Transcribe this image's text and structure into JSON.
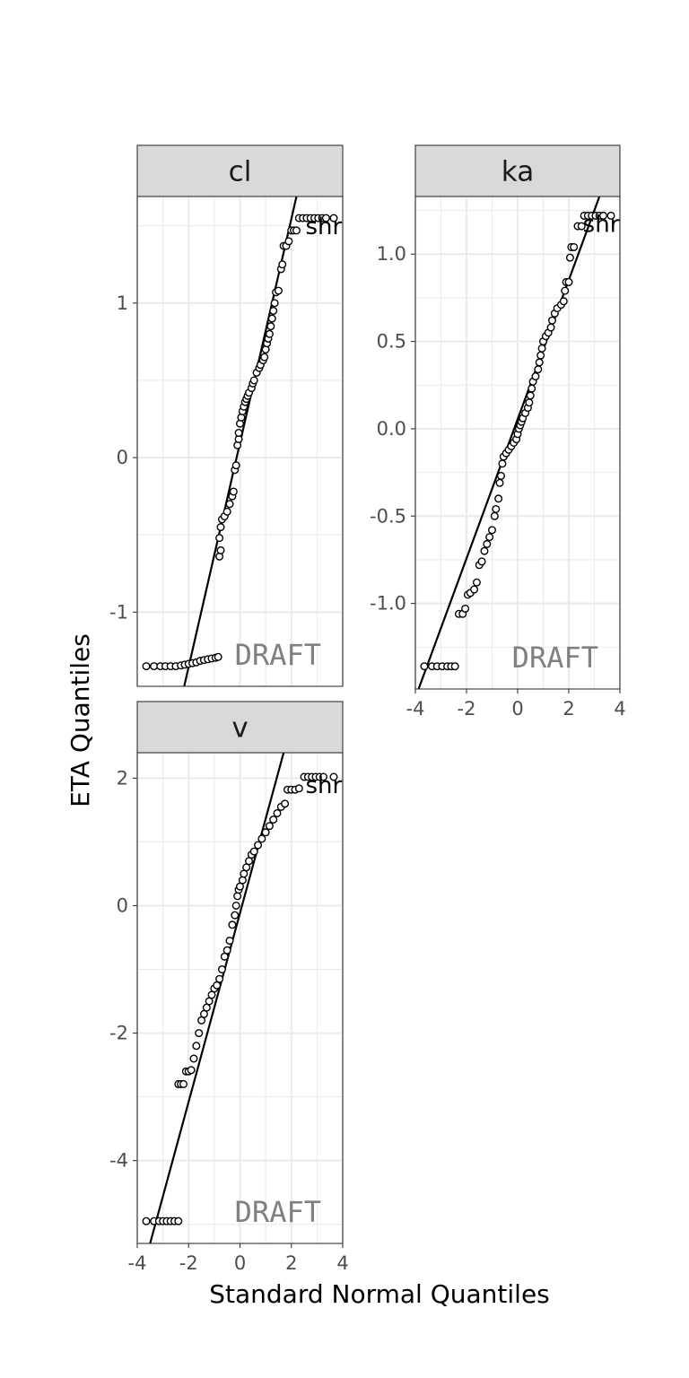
{
  "chart_data": {
    "type": "scatter",
    "xlabel": "Standard Normal Quantiles",
    "ylabel": "ETA Quantiles",
    "watermark": "DRAFT",
    "point_label": "shrink",
    "panels": [
      {
        "name": "cl",
        "xlim": [
          -4,
          4
        ],
        "ylim": [
          -1.48,
          1.69
        ],
        "yticks": [
          -1,
          0,
          1
        ],
        "yticklabels": [
          "-1",
          "0",
          "1"
        ],
        "line": {
          "points": [
            [
              -2.2,
              -1.5
            ],
            [
              2.2,
              1.69
            ]
          ]
        },
        "outliers": [
          [
            -3.65,
            -1.35
          ],
          [
            3.65,
            1.55
          ]
        ],
        "points": [
          [
            -3.35,
            -1.35
          ],
          [
            -3.1,
            -1.35
          ],
          [
            -2.9,
            -1.35
          ],
          [
            -2.7,
            -1.35
          ],
          [
            -2.5,
            -1.35
          ],
          [
            -2.3,
            -1.345
          ],
          [
            -2.15,
            -1.34
          ],
          [
            -2.0,
            -1.335
          ],
          [
            -1.85,
            -1.33
          ],
          [
            -1.7,
            -1.325
          ],
          [
            -1.55,
            -1.315
          ],
          [
            -1.4,
            -1.31
          ],
          [
            -1.25,
            -1.305
          ],
          [
            -1.1,
            -1.3
          ],
          [
            -0.95,
            -1.295
          ],
          [
            -0.85,
            -1.29
          ],
          [
            -0.8,
            -0.64
          ],
          [
            -0.75,
            -0.6
          ],
          [
            -0.8,
            -0.52
          ],
          [
            -0.75,
            -0.45
          ],
          [
            -0.7,
            -0.4
          ],
          [
            -0.6,
            -0.38
          ],
          [
            -0.5,
            -0.35
          ],
          [
            -0.4,
            -0.3
          ],
          [
            -0.3,
            -0.25
          ],
          [
            -0.25,
            -0.22
          ],
          [
            -0.2,
            -0.08
          ],
          [
            -0.15,
            -0.05
          ],
          [
            -0.1,
            0.08
          ],
          [
            -0.05,
            0.12
          ],
          [
            -0.05,
            0.16
          ],
          [
            0.0,
            0.22
          ],
          [
            0.05,
            0.26
          ],
          [
            0.1,
            0.3
          ],
          [
            0.15,
            0.33
          ],
          [
            0.2,
            0.36
          ],
          [
            0.25,
            0.38
          ],
          [
            0.3,
            0.4
          ],
          [
            0.35,
            0.42
          ],
          [
            0.45,
            0.45
          ],
          [
            0.5,
            0.48
          ],
          [
            0.55,
            0.5
          ],
          [
            0.65,
            0.55
          ],
          [
            0.75,
            0.58
          ],
          [
            0.8,
            0.6
          ],
          [
            0.9,
            0.63
          ],
          [
            0.95,
            0.65
          ],
          [
            1.0,
            0.7
          ],
          [
            1.05,
            0.74
          ],
          [
            1.1,
            0.77
          ],
          [
            1.15,
            0.8
          ],
          [
            1.2,
            0.85
          ],
          [
            1.25,
            0.9
          ],
          [
            1.3,
            0.95
          ],
          [
            1.35,
            1.0
          ],
          [
            1.4,
            1.07
          ],
          [
            1.5,
            1.08
          ],
          [
            1.6,
            1.22
          ],
          [
            1.65,
            1.25
          ],
          [
            1.7,
            1.37
          ],
          [
            1.8,
            1.37
          ],
          [
            1.9,
            1.4
          ],
          [
            2.0,
            1.47
          ],
          [
            2.1,
            1.47
          ],
          [
            2.2,
            1.47
          ],
          [
            2.3,
            1.55
          ],
          [
            2.45,
            1.55
          ],
          [
            2.6,
            1.55
          ],
          [
            2.75,
            1.55
          ],
          [
            2.9,
            1.55
          ],
          [
            3.05,
            1.55
          ],
          [
            3.2,
            1.55
          ],
          [
            3.35,
            1.55
          ]
        ]
      },
      {
        "name": "ka",
        "xlim": [
          -4,
          4
        ],
        "ylim": [
          -1.49,
          1.33
        ],
        "xticks": [
          -4,
          -2,
          0,
          2,
          4
        ],
        "xticklabels": [
          "-4",
          "-2",
          "0",
          "2",
          "4"
        ],
        "yticks": [
          -1.0,
          -0.5,
          0.0,
          0.5,
          1.0
        ],
        "yticklabels": [
          "-1.0",
          "-0.5",
          "0.0",
          "0.5",
          "1.0"
        ],
        "line": {
          "points": [
            [
              -3.9,
              -1.5
            ],
            [
              3.2,
              1.33
            ]
          ]
        },
        "outliers": [
          [
            -3.65,
            -1.36
          ],
          [
            3.65,
            1.22
          ]
        ],
        "points": [
          [
            -3.35,
            -1.36
          ],
          [
            -3.15,
            -1.36
          ],
          [
            -2.95,
            -1.36
          ],
          [
            -2.75,
            -1.36
          ],
          [
            -2.6,
            -1.36
          ],
          [
            -2.45,
            -1.36
          ],
          [
            -2.3,
            -1.06
          ],
          [
            -2.15,
            -1.06
          ],
          [
            -2.05,
            -1.03
          ],
          [
            -1.95,
            -0.95
          ],
          [
            -1.85,
            -0.94
          ],
          [
            -1.7,
            -0.92
          ],
          [
            -1.6,
            -0.88
          ],
          [
            -1.5,
            -0.78
          ],
          [
            -1.4,
            -0.76
          ],
          [
            -1.3,
            -0.7
          ],
          [
            -1.2,
            -0.66
          ],
          [
            -1.1,
            -0.62
          ],
          [
            -1.0,
            -0.58
          ],
          [
            -0.9,
            -0.5
          ],
          [
            -0.85,
            -0.46
          ],
          [
            -0.75,
            -0.4
          ],
          [
            -0.7,
            -0.31
          ],
          [
            -0.65,
            -0.27
          ],
          [
            -0.6,
            -0.2
          ],
          [
            -0.55,
            -0.16
          ],
          [
            -0.45,
            -0.14
          ],
          [
            -0.35,
            -0.12
          ],
          [
            -0.25,
            -0.1
          ],
          [
            -0.15,
            -0.08
          ],
          [
            -0.05,
            -0.06
          ],
          [
            0.0,
            -0.03
          ],
          [
            0.05,
            0.0
          ],
          [
            0.1,
            0.02
          ],
          [
            0.15,
            0.04
          ],
          [
            0.2,
            0.06
          ],
          [
            0.3,
            0.09
          ],
          [
            0.4,
            0.12
          ],
          [
            0.45,
            0.15
          ],
          [
            0.5,
            0.19
          ],
          [
            0.55,
            0.23
          ],
          [
            0.6,
            0.27
          ],
          [
            0.7,
            0.3
          ],
          [
            0.8,
            0.34
          ],
          [
            0.85,
            0.38
          ],
          [
            0.9,
            0.42
          ],
          [
            0.95,
            0.46
          ],
          [
            1.0,
            0.5
          ],
          [
            1.1,
            0.53
          ],
          [
            1.2,
            0.55
          ],
          [
            1.3,
            0.58
          ],
          [
            1.35,
            0.62
          ],
          [
            1.45,
            0.66
          ],
          [
            1.55,
            0.69
          ],
          [
            1.7,
            0.71
          ],
          [
            1.8,
            0.73
          ],
          [
            1.85,
            0.79
          ],
          [
            1.9,
            0.84
          ],
          [
            2.0,
            0.84
          ],
          [
            2.05,
            0.98
          ],
          [
            2.1,
            1.04
          ],
          [
            2.2,
            1.04
          ],
          [
            2.35,
            1.16
          ],
          [
            2.5,
            1.16
          ],
          [
            2.6,
            1.22
          ],
          [
            2.75,
            1.22
          ],
          [
            2.9,
            1.22
          ],
          [
            3.05,
            1.22
          ],
          [
            3.2,
            1.22
          ],
          [
            3.35,
            1.22
          ]
        ]
      },
      {
        "name": "v",
        "xlim": [
          -4,
          4
        ],
        "ylim": [
          -5.3,
          2.4
        ],
        "xticks": [
          -4,
          -2,
          0,
          2,
          4
        ],
        "xticklabels": [
          "-4",
          "-2",
          "0",
          "2",
          "4"
        ],
        "yticks": [
          -4,
          -2,
          0,
          2
        ],
        "yticklabels": [
          "-4",
          "-2",
          "0",
          "2"
        ],
        "line": {
          "points": [
            [
              -3.5,
              -5.3
            ],
            [
              1.7,
              2.4
            ]
          ]
        },
        "outliers": [
          [
            -3.65,
            -4.95
          ],
          [
            3.65,
            2.02
          ]
        ],
        "points": [
          [
            -3.35,
            -4.95
          ],
          [
            -3.15,
            -4.95
          ],
          [
            -3.0,
            -4.95
          ],
          [
            -2.85,
            -4.95
          ],
          [
            -2.7,
            -4.95
          ],
          [
            -2.55,
            -4.95
          ],
          [
            -2.4,
            -4.95
          ],
          [
            -2.4,
            -2.8
          ],
          [
            -2.3,
            -2.8
          ],
          [
            -2.2,
            -2.8
          ],
          [
            -2.1,
            -2.6
          ],
          [
            -2.0,
            -2.6
          ],
          [
            -1.9,
            -2.58
          ],
          [
            -1.8,
            -2.4
          ],
          [
            -1.7,
            -2.2
          ],
          [
            -1.6,
            -2.0
          ],
          [
            -1.5,
            -1.8
          ],
          [
            -1.4,
            -1.7
          ],
          [
            -1.3,
            -1.6
          ],
          [
            -1.2,
            -1.5
          ],
          [
            -1.1,
            -1.4
          ],
          [
            -1.0,
            -1.3
          ],
          [
            -0.9,
            -1.25
          ],
          [
            -0.8,
            -1.15
          ],
          [
            -0.7,
            -1.0
          ],
          [
            -0.6,
            -0.8
          ],
          [
            -0.5,
            -0.7
          ],
          [
            -0.4,
            -0.55
          ],
          [
            -0.3,
            -0.3
          ],
          [
            -0.2,
            -0.15
          ],
          [
            -0.15,
            0.0
          ],
          [
            -0.1,
            0.15
          ],
          [
            -0.05,
            0.25
          ],
          [
            0.0,
            0.3
          ],
          [
            0.1,
            0.4
          ],
          [
            0.15,
            0.5
          ],
          [
            0.25,
            0.6
          ],
          [
            0.35,
            0.7
          ],
          [
            0.45,
            0.8
          ],
          [
            0.55,
            0.85
          ],
          [
            0.7,
            0.95
          ],
          [
            0.85,
            1.05
          ],
          [
            1.0,
            1.15
          ],
          [
            1.15,
            1.25
          ],
          [
            1.3,
            1.35
          ],
          [
            1.45,
            1.45
          ],
          [
            1.6,
            1.55
          ],
          [
            1.75,
            1.6
          ],
          [
            1.85,
            1.82
          ],
          [
            2.0,
            1.82
          ],
          [
            2.15,
            1.82
          ],
          [
            2.3,
            1.84
          ],
          [
            2.5,
            2.02
          ],
          [
            2.65,
            2.02
          ],
          [
            2.8,
            2.02
          ],
          [
            2.95,
            2.02
          ],
          [
            3.1,
            2.02
          ],
          [
            3.25,
            2.02
          ]
        ]
      }
    ]
  }
}
